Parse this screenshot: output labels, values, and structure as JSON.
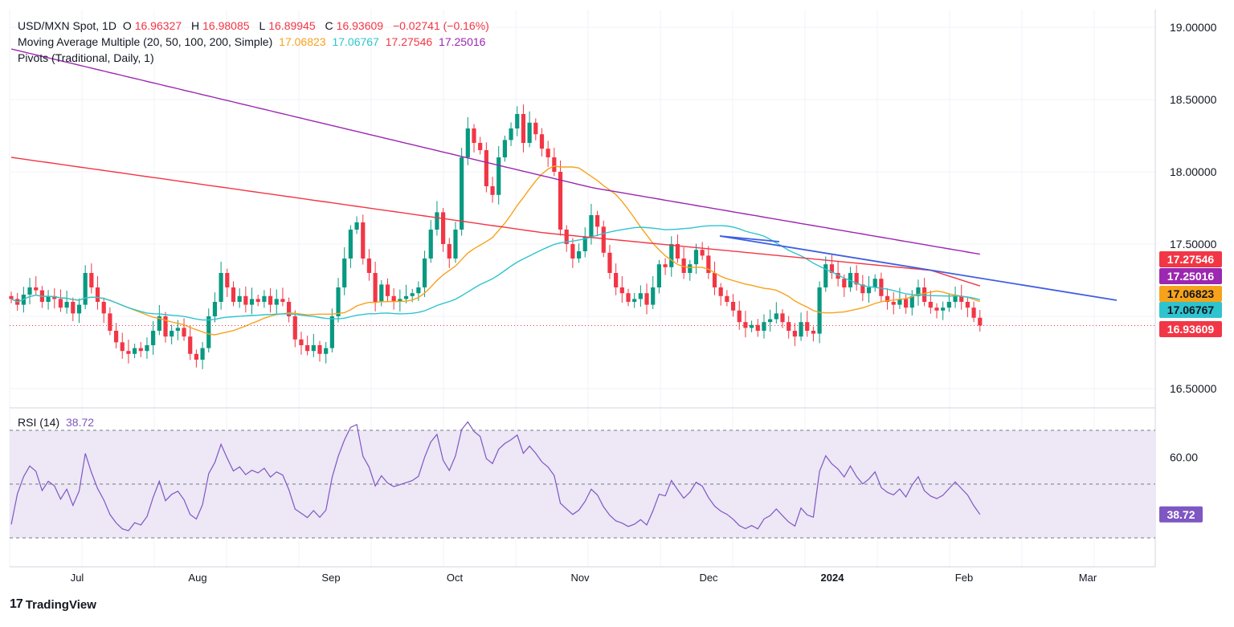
{
  "legend": {
    "symbol": "USD/MXN Spot, 1D",
    "o_label": "O",
    "o_value": "16.96327",
    "h_label": "H",
    "h_value": "16.98085",
    "l_label": "L",
    "l_value": "16.89945",
    "c_label": "C",
    "c_value": "16.93609",
    "change": "−0.02741 (−0.16%)",
    "ma_label": "Moving Average Multiple (20, 50, 100, 200, Simple)",
    "ma_values": [
      "17.06823",
      "17.06767",
      "17.27546",
      "17.25016"
    ],
    "pivots_label": "Pivots (Traditional, Daily, 1)",
    "rsi_label": "RSI (14)",
    "rsi_value": "38.72"
  },
  "brand": {
    "logo_mark": "17",
    "name": "TradingView"
  },
  "colors": {
    "up": "#089981",
    "down": "#f23645",
    "ma20": "#f7a21b",
    "ma50": "#2ec4cf",
    "ma100": "#f23645",
    "ma200": "#9c27b0",
    "trendline": "#3f5fe0",
    "rsi": "#7e57c2",
    "rsi_band": "#ede7f6",
    "grid": "#f0f3fa"
  },
  "chart_data": {
    "type": "candlestick",
    "price_axis": {
      "ticks": [
        "19.00000",
        "18.50000",
        "18.00000",
        "17.50000",
        "16.50000"
      ],
      "ylim": [
        16.4,
        19.1
      ]
    },
    "time_axis": {
      "ticks": [
        "Jul",
        "Aug",
        "Sep",
        "Oct",
        "Nov",
        "Dec",
        "2024",
        "Feb",
        "Mar"
      ]
    },
    "last_price": "16.93609",
    "badges": [
      {
        "value": "17.27546",
        "series": "ma100"
      },
      {
        "value": "17.25016",
        "series": "ma200"
      },
      {
        "value": "17.06823",
        "series": "ma20"
      },
      {
        "value": "17.06767",
        "series": "ma50"
      },
      {
        "value": "16.93609",
        "series": "price"
      }
    ],
    "ohlc_closes": [
      17.12,
      17.08,
      17.15,
      17.2,
      17.18,
      17.1,
      17.14,
      17.12,
      17.06,
      17.1,
      17.02,
      17.08,
      17.3,
      17.2,
      17.1,
      17.02,
      16.9,
      16.82,
      16.76,
      16.74,
      16.78,
      16.76,
      16.8,
      16.9,
      17.0,
      16.86,
      16.9,
      16.92,
      16.86,
      16.74,
      16.7,
      16.78,
      17.0,
      17.1,
      17.3,
      17.2,
      17.1,
      17.14,
      17.08,
      17.12,
      17.1,
      17.14,
      17.08,
      17.12,
      17.1,
      17.0,
      16.84,
      16.8,
      16.76,
      16.8,
      16.74,
      16.78,
      17.0,
      17.2,
      17.4,
      17.6,
      17.65,
      17.4,
      17.3,
      17.1,
      17.22,
      17.14,
      17.1,
      17.12,
      17.14,
      17.16,
      17.2,
      17.4,
      17.6,
      17.72,
      17.5,
      17.4,
      17.6,
      18.1,
      18.3,
      18.2,
      18.15,
      17.9,
      17.84,
      18.1,
      18.22,
      18.3,
      18.4,
      18.2,
      18.34,
      18.26,
      18.16,
      18.1,
      18.0,
      17.6,
      17.5,
      17.4,
      17.45,
      17.55,
      17.7,
      17.62,
      17.44,
      17.3,
      17.2,
      17.16,
      17.1,
      17.12,
      17.16,
      17.08,
      17.2,
      17.36,
      17.34,
      17.5,
      17.4,
      17.3,
      17.36,
      17.46,
      17.42,
      17.3,
      17.2,
      17.14,
      17.1,
      17.04,
      16.96,
      16.92,
      16.94,
      16.9,
      16.96,
      16.98,
      17.02,
      16.96,
      16.9,
      16.86,
      16.96,
      16.9,
      16.88,
      17.2,
      17.36,
      17.3,
      17.26,
      17.2,
      17.3,
      17.22,
      17.16,
      17.2,
      17.26,
      17.14,
      17.1,
      17.08,
      17.12,
      17.06,
      17.14,
      17.2,
      17.1,
      17.06,
      17.04,
      17.06,
      17.1,
      17.14,
      17.1,
      17.06,
      16.99,
      16.93609
    ],
    "rsi_scale": {
      "ticks": [
        "60.00"
      ],
      "levels": [
        70,
        50,
        30
      ],
      "value": 38.72
    }
  }
}
